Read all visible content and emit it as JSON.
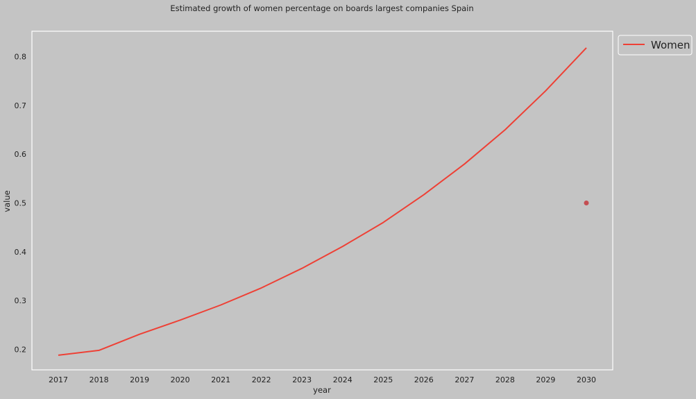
{
  "chart_data": {
    "type": "line",
    "title": "Estimated growth of women percentage on boards largest companies Spain",
    "xlabel": "year",
    "ylabel": "value",
    "x": [
      2017,
      2018,
      2019,
      2020,
      2021,
      2022,
      2023,
      2024,
      2025,
      2026,
      2027,
      2028,
      2029,
      2030
    ],
    "xlim": [
      2016.35,
      2030.65
    ],
    "ylim": [
      0.158,
      0.852
    ],
    "y_ticks": [
      0.2,
      0.3,
      0.4,
      0.5,
      0.6,
      0.7,
      0.8
    ],
    "grid": false,
    "legend_position": "outside-top-right",
    "series": [
      {
        "name": "Women",
        "color": "#ee4035",
        "values": [
          0.188,
          0.198,
          0.231,
          0.26,
          0.291,
          0.326,
          0.366,
          0.411,
          0.46,
          0.517,
          0.58,
          0.65,
          0.73,
          0.818
        ]
      }
    ],
    "markers": [
      {
        "x": 2030,
        "y": 0.5,
        "color": "#c44e52"
      }
    ]
  }
}
